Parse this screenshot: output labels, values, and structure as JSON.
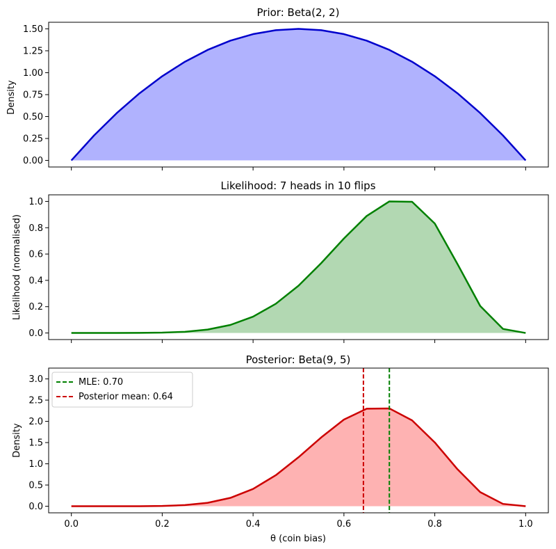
{
  "chart_data": [
    {
      "type": "area",
      "title": "Prior: Beta(2, 2)",
      "xlabel": "",
      "ylabel": "Density",
      "xlim": [
        -0.05,
        1.05
      ],
      "ylim": [
        -0.075,
        1.575
      ],
      "yticks": [
        0.0,
        0.25,
        0.5,
        0.75,
        1.0,
        1.25,
        1.5
      ],
      "ytick_labels": [
        "0.00",
        "0.25",
        "0.50",
        "0.75",
        "1.00",
        "1.25",
        "1.50"
      ],
      "xticks": [
        0.0,
        0.2,
        0.4,
        0.6,
        0.8,
        1.0
      ],
      "xtick_labels": [],
      "line_color": "#0000cc",
      "fill_color": "#b0b2fe",
      "series": [
        {
          "name": "Beta(2, 2) density",
          "x": [
            0.0,
            0.05,
            0.1,
            0.15,
            0.2,
            0.25,
            0.3,
            0.35,
            0.4,
            0.45,
            0.5,
            0.55,
            0.6,
            0.65,
            0.7,
            0.75,
            0.8,
            0.85,
            0.9,
            0.95,
            1.0
          ],
          "y": [
            0.0,
            0.285,
            0.54,
            0.765,
            0.96,
            1.125,
            1.26,
            1.365,
            1.44,
            1.485,
            1.5,
            1.485,
            1.44,
            1.365,
            1.26,
            1.125,
            0.96,
            0.765,
            0.54,
            0.285,
            0.0
          ]
        }
      ]
    },
    {
      "type": "area",
      "title": "Likelihood: 7 heads in 10 flips",
      "xlabel": "",
      "ylabel": "Likelihood (normalised)",
      "xlim": [
        -0.05,
        1.05
      ],
      "ylim": [
        -0.05,
        1.05
      ],
      "yticks": [
        0.0,
        0.2,
        0.4,
        0.6,
        0.8,
        1.0
      ],
      "ytick_labels": [
        "0.0",
        "0.2",
        "0.4",
        "0.6",
        "0.8",
        "1.0"
      ],
      "xticks": [
        0.0,
        0.2,
        0.4,
        0.6,
        0.8,
        1.0
      ],
      "xtick_labels": [],
      "line_color": "#008000",
      "fill_color": "#b2d8b2",
      "series": [
        {
          "name": "Normalised likelihood",
          "x": [
            0.0,
            0.05,
            0.1,
            0.15,
            0.2,
            0.25,
            0.3,
            0.35,
            0.4,
            0.45,
            0.5,
            0.55,
            0.6,
            0.65,
            0.7,
            0.75,
            0.8,
            0.85,
            0.9,
            0.95,
            1.0
          ],
          "y": [
            0.0,
            0.0,
            0.0,
            0.001,
            0.003,
            0.009,
            0.026,
            0.061,
            0.124,
            0.222,
            0.359,
            0.531,
            0.718,
            0.889,
            1.0,
            0.997,
            0.832,
            0.524,
            0.205,
            0.031,
            0.0
          ]
        }
      ]
    },
    {
      "type": "area",
      "title": "Posterior: Beta(9, 5)",
      "xlabel": "θ (coin bias)",
      "ylabel": "Density",
      "xlim": [
        -0.05,
        1.05
      ],
      "ylim": [
        -0.155,
        3.255
      ],
      "yticks": [
        0.0,
        0.5,
        1.0,
        1.5,
        2.0,
        2.5,
        3.0
      ],
      "ytick_labels": [
        "0.0",
        "0.5",
        "1.0",
        "1.5",
        "2.0",
        "2.5",
        "3.0"
      ],
      "xticks": [
        0.0,
        0.2,
        0.4,
        0.6,
        0.8,
        1.0
      ],
      "xtick_labels": [
        "0.0",
        "0.2",
        "0.4",
        "0.6",
        "0.8",
        "1.0"
      ],
      "line_color": "#cc0000",
      "fill_color": "#feb2b2",
      "series": [
        {
          "name": "Beta(9, 5) density",
          "x": [
            0.0,
            0.05,
            0.1,
            0.15,
            0.2,
            0.25,
            0.3,
            0.35,
            0.4,
            0.45,
            0.5,
            0.55,
            0.6,
            0.65,
            0.7,
            0.75,
            0.8,
            0.85,
            0.9,
            0.95,
            1.0
          ],
          "y": [
            0.0,
            0.0,
            0.0,
            0.001,
            0.007,
            0.027,
            0.081,
            0.197,
            0.408,
            0.731,
            1.154,
            1.621,
            2.042,
            2.298,
            2.305,
            2.024,
            1.503,
            0.871,
            0.332,
            0.055,
            0.0
          ]
        }
      ],
      "vlines": [
        {
          "name": "MLE",
          "x": 0.7,
          "color": "#008000",
          "label": "MLE: 0.70"
        },
        {
          "name": "Posterior mean",
          "x": 0.6429,
          "color": "#cc0000",
          "label": "Posterior mean: 0.64"
        }
      ],
      "legend_position": "upper-left"
    }
  ]
}
